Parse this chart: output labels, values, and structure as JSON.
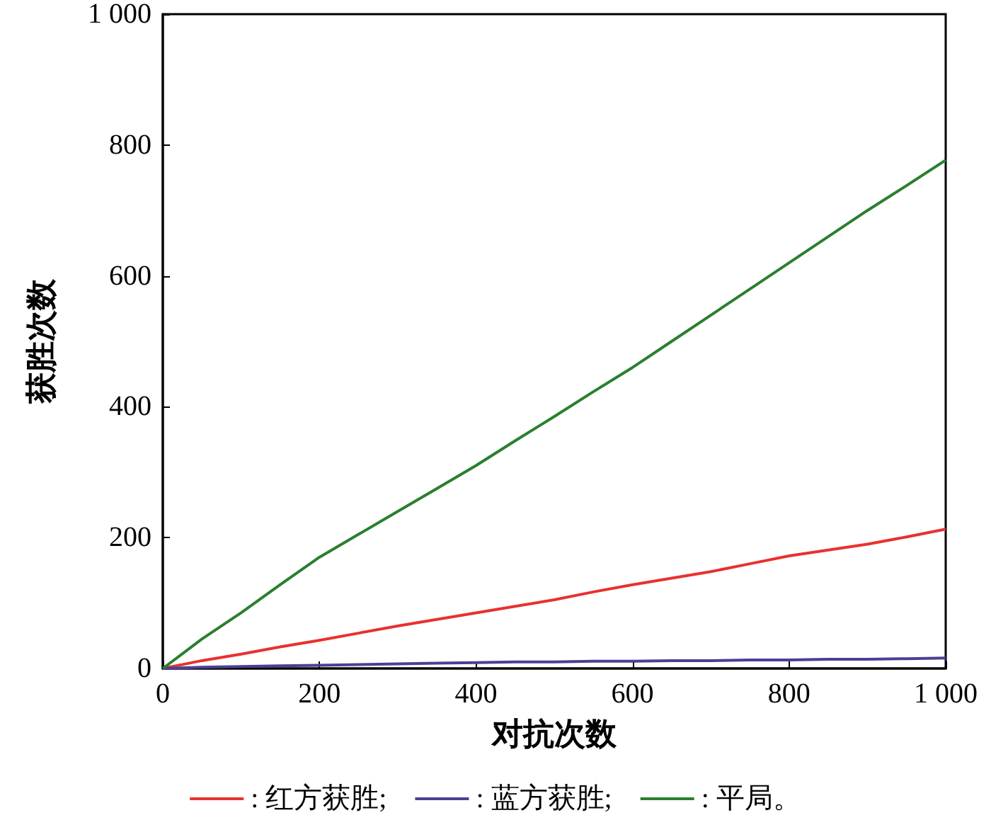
{
  "chart_data": {
    "type": "line",
    "xlabel": "对抗次数",
    "ylabel": "获胜次数",
    "x": [
      0,
      50,
      100,
      150,
      200,
      250,
      300,
      350,
      400,
      450,
      500,
      550,
      600,
      650,
      700,
      750,
      800,
      850,
      900,
      950,
      1000
    ],
    "series": [
      {
        "name": ": 红方获胜;",
        "color": "#e8312f",
        "values": [
          0,
          12,
          22,
          33,
          43,
          54,
          65,
          75,
          85,
          95,
          105,
          117,
          128,
          138,
          148,
          160,
          172,
          181,
          190,
          201,
          213
        ]
      },
      {
        "name": ": 蓝方获胜;",
        "color": "#4b3f96",
        "values": [
          0,
          2,
          3,
          4,
          5,
          6,
          7,
          8,
          9,
          10,
          10,
          11,
          11,
          12,
          12,
          13,
          13,
          14,
          14,
          15,
          16
        ]
      },
      {
        "name": ": 平局。",
        "color": "#2a7f2e",
        "values": [
          0,
          45,
          85,
          128,
          170,
          205,
          240,
          275,
          310,
          348,
          385,
          423,
          460,
          500,
          540,
          580,
          620,
          660,
          700,
          738,
          777
        ]
      }
    ],
    "xlim": [
      0,
      1000
    ],
    "xticks": [
      0,
      200,
      400,
      600,
      800,
      {
        "value": 1000,
        "label": "1 000"
      }
    ],
    "ylim": [
      0,
      1000
    ],
    "yticks": [
      0,
      200,
      400,
      600,
      800,
      {
        "value": 1000,
        "label": "1 000"
      }
    ],
    "grid": false,
    "legend": "bottom",
    "marker": "none",
    "line_style": "solid"
  }
}
